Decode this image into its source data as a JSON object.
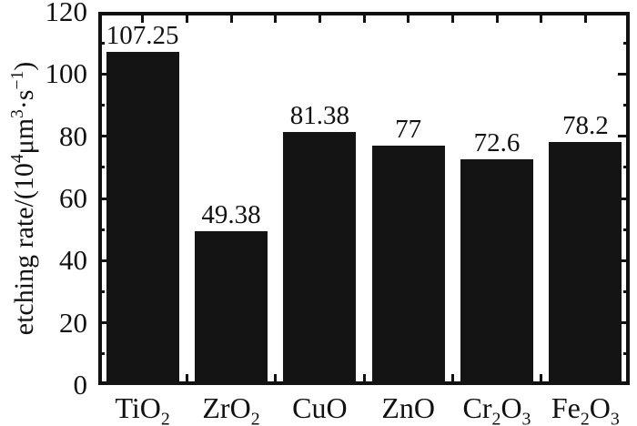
{
  "chart_data": {
    "type": "bar",
    "title": "",
    "categories": [
      "TiO_2",
      "ZrO_2",
      "CuO",
      "ZnO",
      "Cr_2O_3",
      "Fe_2O_3"
    ],
    "values": [
      107.25,
      49.38,
      81.38,
      77,
      72.6,
      78.2
    ],
    "value_labels": [
      "107.25",
      "49.38",
      "81.38",
      "77",
      "72.6",
      "78.2"
    ],
    "xlabel": "",
    "ylabel_plain": "etching rate/(10⁴μm³·s⁻¹)",
    "ylabel_segments": [
      {
        "t": "etching rate/(10"
      },
      {
        "t": "4",
        "sup": true
      },
      {
        "t": "μm"
      },
      {
        "t": "3",
        "sup": true
      },
      {
        "t": "·s"
      },
      {
        "t": "−1",
        "sup": true
      },
      {
        "t": ")"
      }
    ],
    "ylim": [
      0,
      120
    ],
    "ytick_major_step": 20,
    "ytick_minor_step": 10,
    "ytick_labels": [
      "0",
      "20",
      "40",
      "60",
      "80",
      "100",
      "120"
    ],
    "grid": false,
    "legend": "none",
    "bar_color": "#141414",
    "axis_color": "#111111",
    "background_color": "#ffffff"
  }
}
